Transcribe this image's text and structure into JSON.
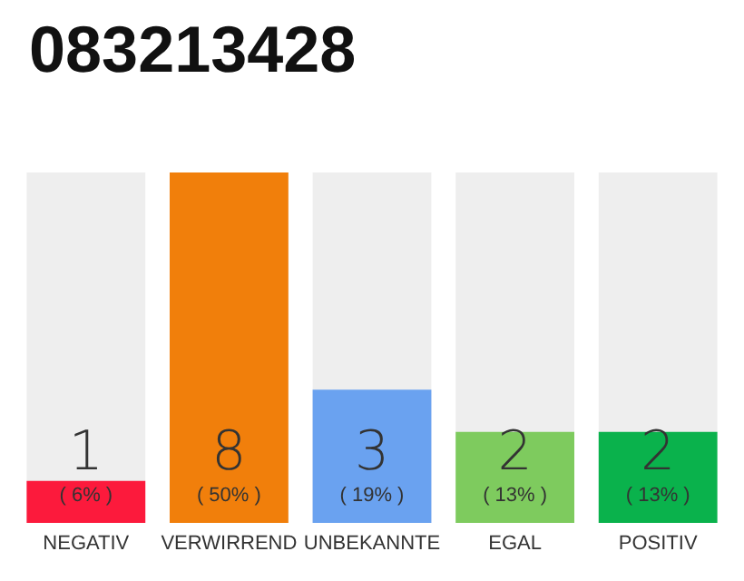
{
  "chart_data": {
    "type": "bar",
    "title": "083213428",
    "categories": [
      "NEGATIV",
      "VERWIRREND",
      "UNBEKANNTE",
      "EGAL",
      "POSITIV"
    ],
    "values": [
      6,
      50,
      19,
      13,
      13
    ],
    "colors": [
      "#fc1a3c",
      "#f17f0b",
      "#6aa2f0",
      "#7ecb5e",
      "#0ab24c"
    ],
    "value_labels": [
      "1\n( 6% )",
      "8\n( 50% )",
      "3\n( 19% )",
      "2\n( 13% )",
      "2\n( 13% )"
    ]
  }
}
